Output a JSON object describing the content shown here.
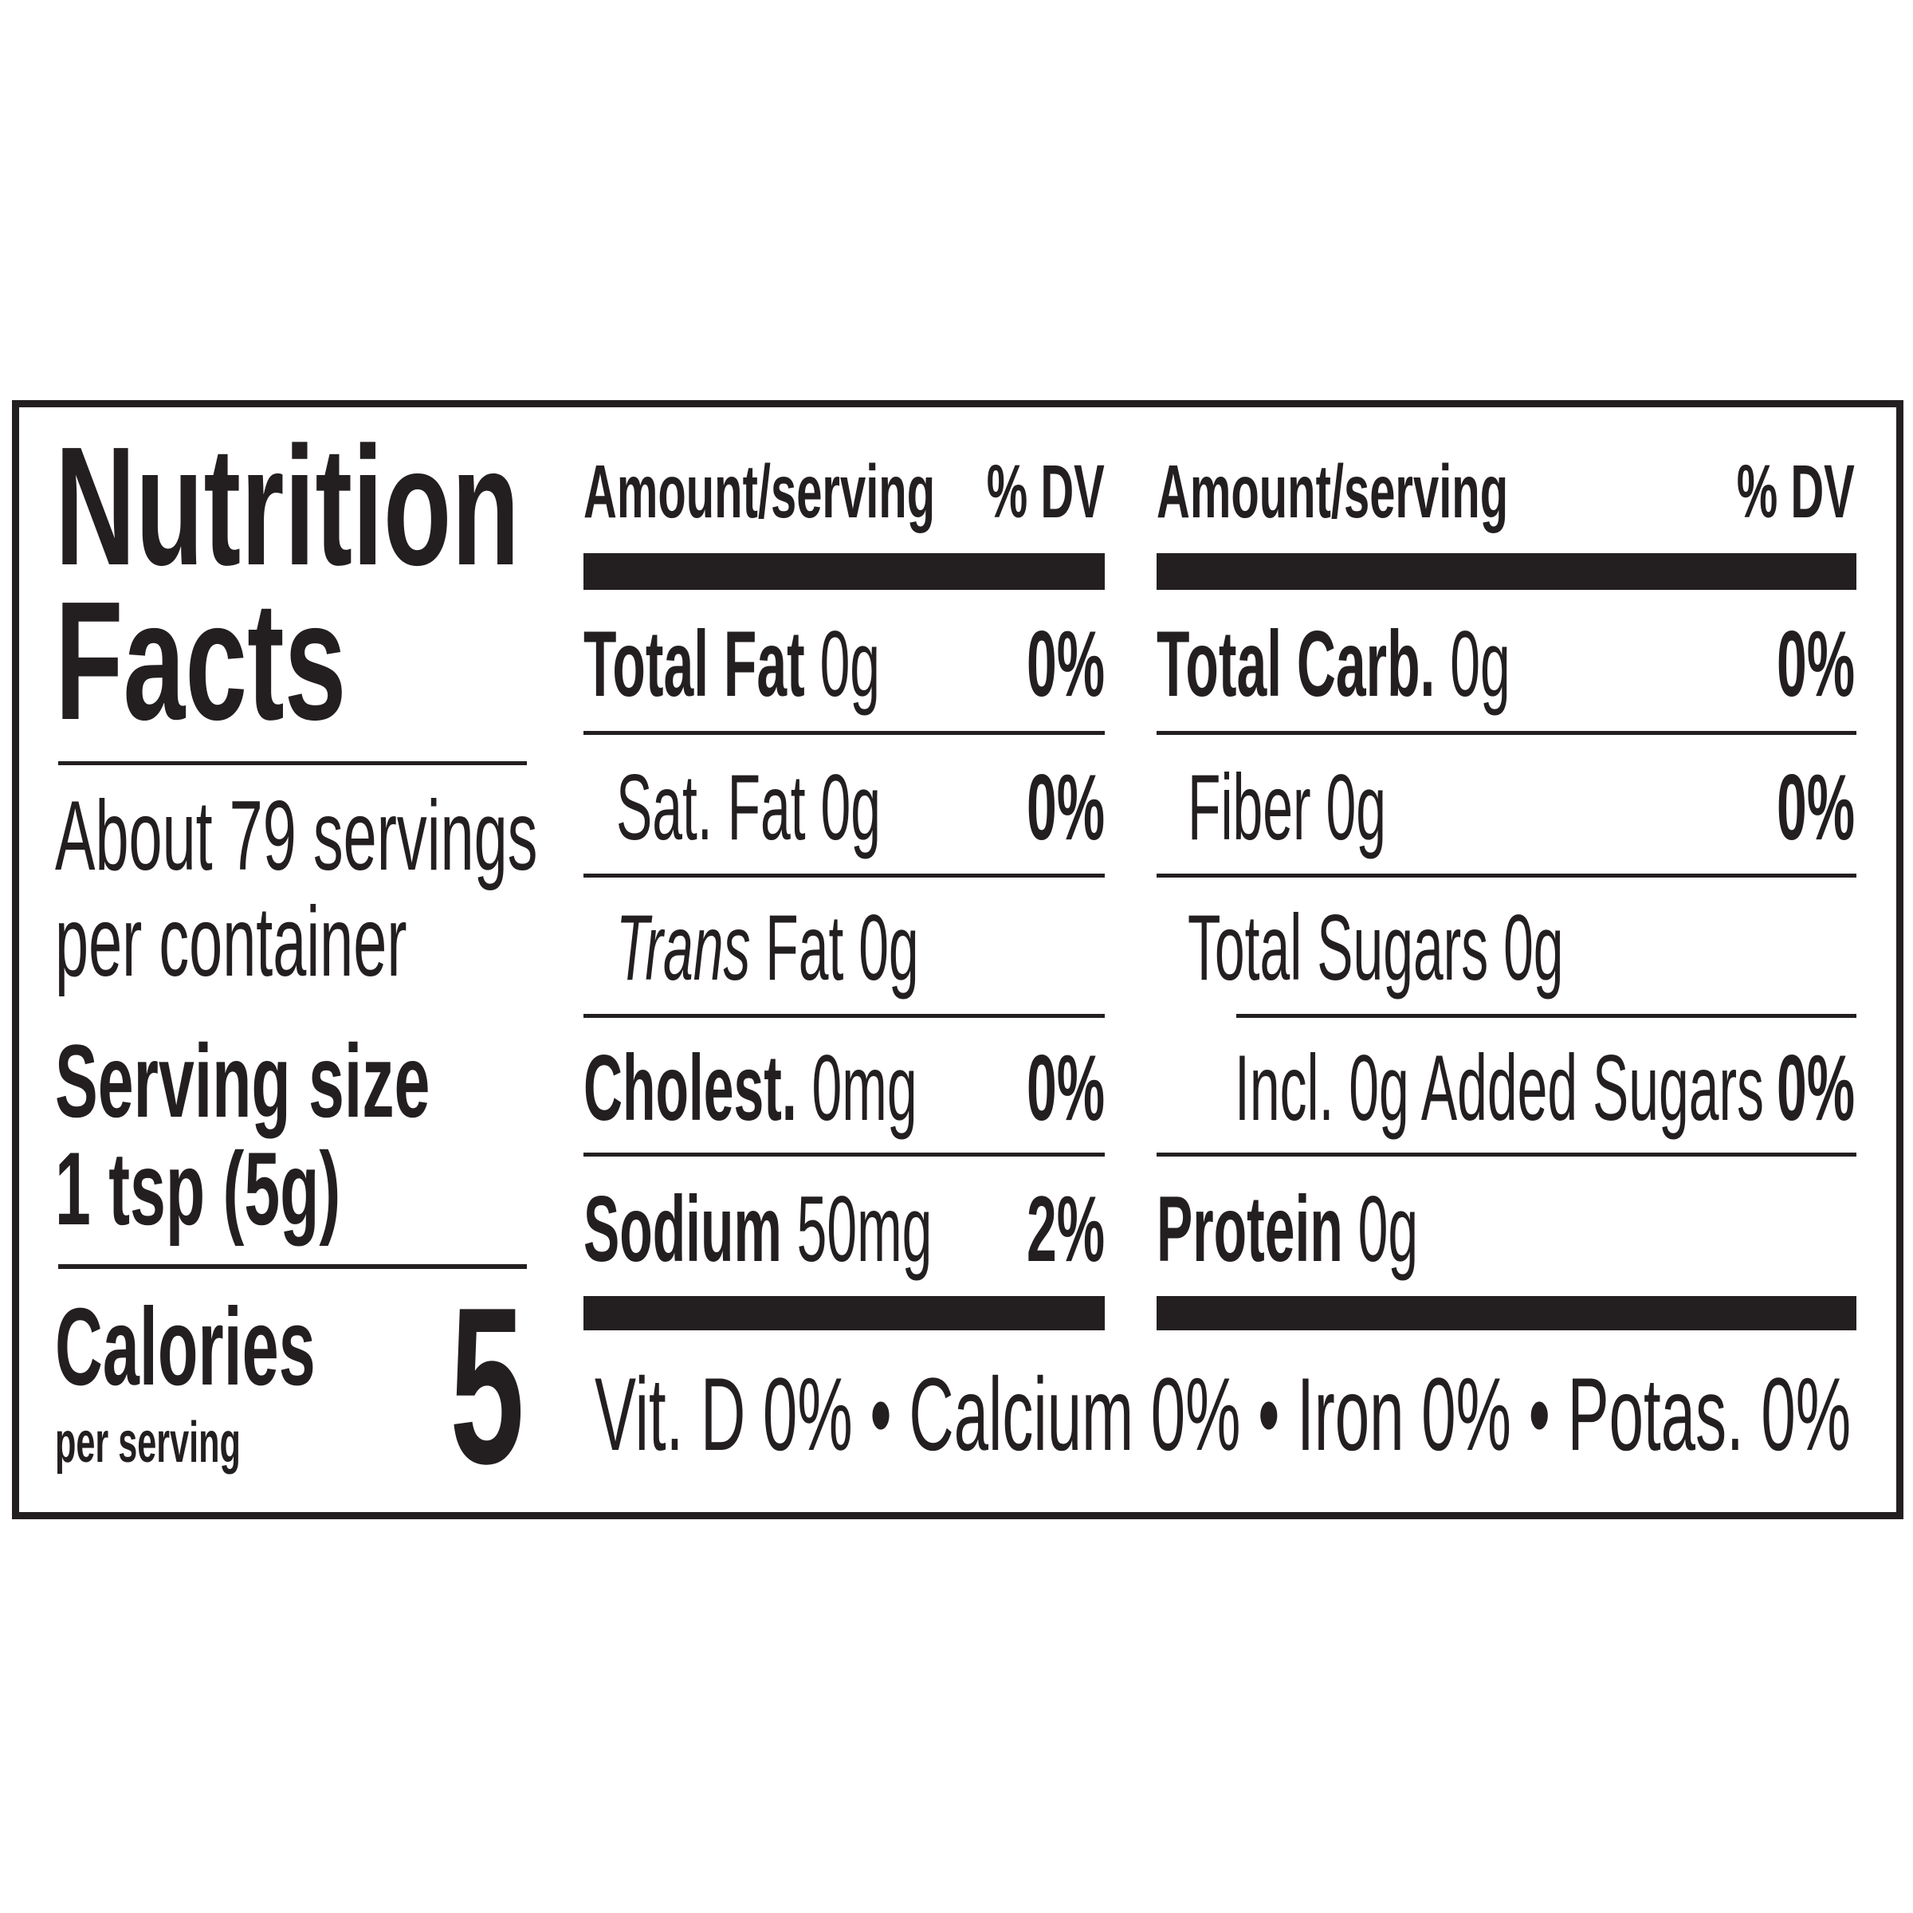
{
  "title": {
    "line1": "Nutrition",
    "line2": "Facts"
  },
  "servings": {
    "line1": "About 79 servings",
    "line2": "per container"
  },
  "serving_size": {
    "label": "Serving size",
    "value": "1 tsp (5g)"
  },
  "calories": {
    "label": "Calories",
    "sublabel": "per serving",
    "value": "5"
  },
  "headers": {
    "amount": "Amount/serving",
    "dv": "% DV"
  },
  "left_column": [
    {
      "label": "Total Fat",
      "amount": "0g",
      "dv": "0%"
    },
    {
      "label": "Sat. Fat",
      "amount": "0g",
      "dv": "0%"
    },
    {
      "label_italic": "Trans",
      "label": "Fat",
      "amount": "0g"
    },
    {
      "label": "Cholest.",
      "amount": "0mg",
      "dv": "0%"
    },
    {
      "label": "Sodium",
      "amount": "50mg",
      "dv": "2%"
    }
  ],
  "right_column": [
    {
      "label": "Total Carb.",
      "amount": "0g",
      "dv": "0%"
    },
    {
      "label": "Fiber",
      "amount": "0g",
      "dv": "0%"
    },
    {
      "label": "Total Sugars",
      "amount": "0g"
    },
    {
      "label": "Incl. 0g Added Sugars",
      "dv": "0%"
    },
    {
      "label": "Protein",
      "amount": "0g"
    }
  ],
  "footer": "Vit. D 0% • Calcium 0% • Iron 0% • Potas. 0%"
}
